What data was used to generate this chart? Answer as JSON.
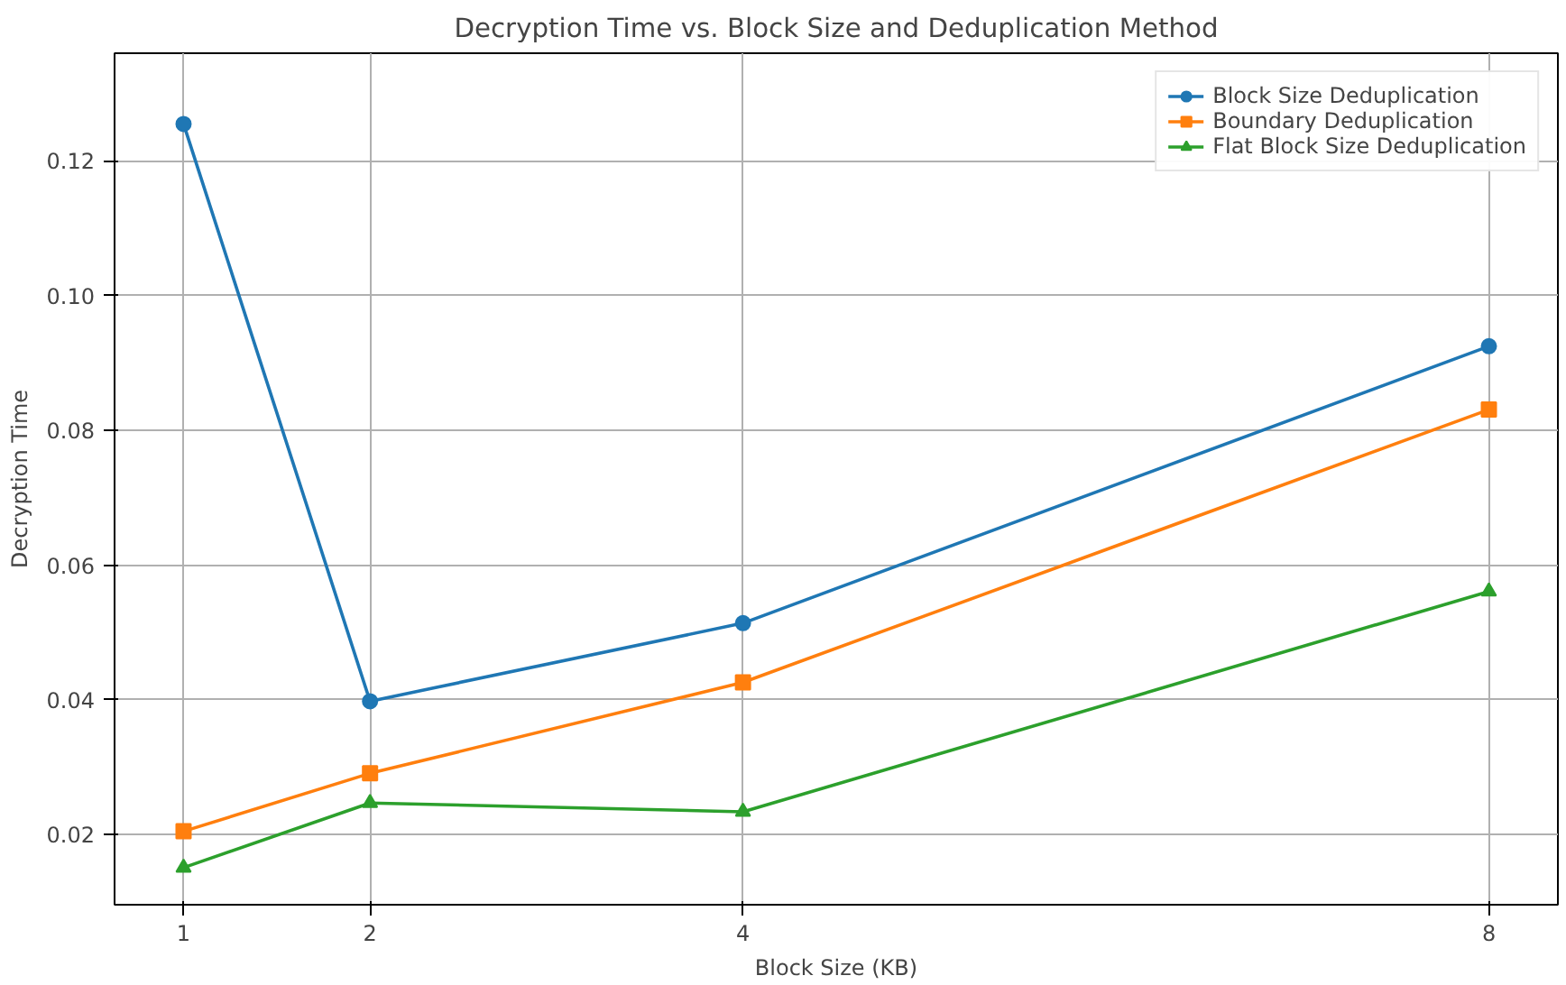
{
  "chart_data": {
    "type": "line",
    "title": "Decryption Time vs. Block Size and Deduplication Method",
    "xlabel": "Block Size (KB)",
    "ylabel": "Decryption Time",
    "x": [
      1,
      2,
      4,
      8
    ],
    "xlim": [
      0.63,
      8.37
    ],
    "xticks": [
      1,
      2,
      4,
      8
    ],
    "ylim": [
      0.0096,
      0.136
    ],
    "yticks": [
      {
        "value": 0.02,
        "label": "0.02"
      },
      {
        "value": 0.04,
        "label": "0.04"
      },
      {
        "value": 0.06,
        "label": "0.06"
      },
      {
        "value": 0.08,
        "label": "0.08"
      },
      {
        "value": 0.1,
        "label": "0.10"
      },
      {
        "value": 0.12,
        "label": "0.12"
      }
    ],
    "grid": true,
    "legend": "top right",
    "line_style": "solid",
    "series": [
      {
        "name": "Block Size Deduplication",
        "color": "#1f77b4",
        "marker": "circle",
        "values": [
          0.1255,
          0.0398,
          0.0514,
          0.0925
        ]
      },
      {
        "name": "Boundary Deduplication",
        "color": "#ff7f0e",
        "marker": "square",
        "values": [
          0.0205,
          0.0291,
          0.0426,
          0.0831
        ]
      },
      {
        "name": "Flat Block Size Deduplication",
        "color": "#2ca02c",
        "marker": "triangle",
        "values": [
          0.0151,
          0.0247,
          0.0234,
          0.0561
        ]
      }
    ]
  }
}
